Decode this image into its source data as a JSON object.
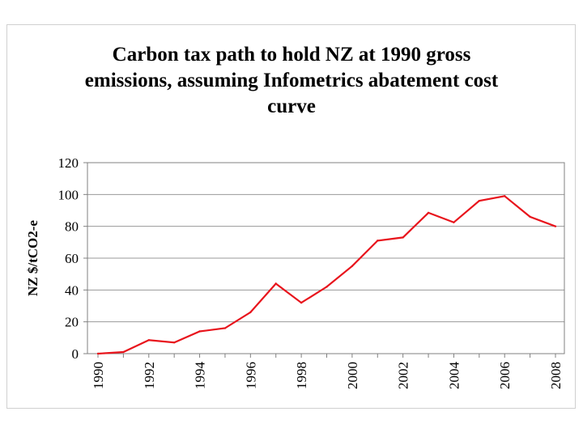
{
  "chart_data": {
    "type": "line",
    "title_lines": [
      "Carbon tax path to hold NZ at 1990 gross",
      "emissions, assuming Infometrics abatement cost",
      "curve"
    ],
    "xlabel": "",
    "ylabel": "NZ $/tCO2-e",
    "ylim": [
      0,
      120
    ],
    "yticks": [
      "0",
      "20",
      "40",
      "60",
      "80",
      "100",
      "120"
    ],
    "xticks": [
      "1990",
      "1992",
      "1994",
      "1996",
      "1998",
      "2000",
      "2002",
      "2004",
      "2006",
      "2008"
    ],
    "grid": "horizontal",
    "legend": "none",
    "series": [
      {
        "name": "Carbon tax",
        "color": "#e8141c",
        "x": [
          1990,
          1991,
          1992,
          1993,
          1994,
          1995,
          1996,
          1997,
          1998,
          1999,
          2000,
          2001,
          2002,
          2003,
          2004,
          2005,
          2006,
          2007,
          2008
        ],
        "values": [
          0,
          1,
          8.5,
          7,
          14,
          16,
          26,
          44,
          32,
          42,
          55,
          71,
          73,
          88.5,
          82.5,
          96,
          99,
          86,
          80
        ]
      }
    ]
  }
}
